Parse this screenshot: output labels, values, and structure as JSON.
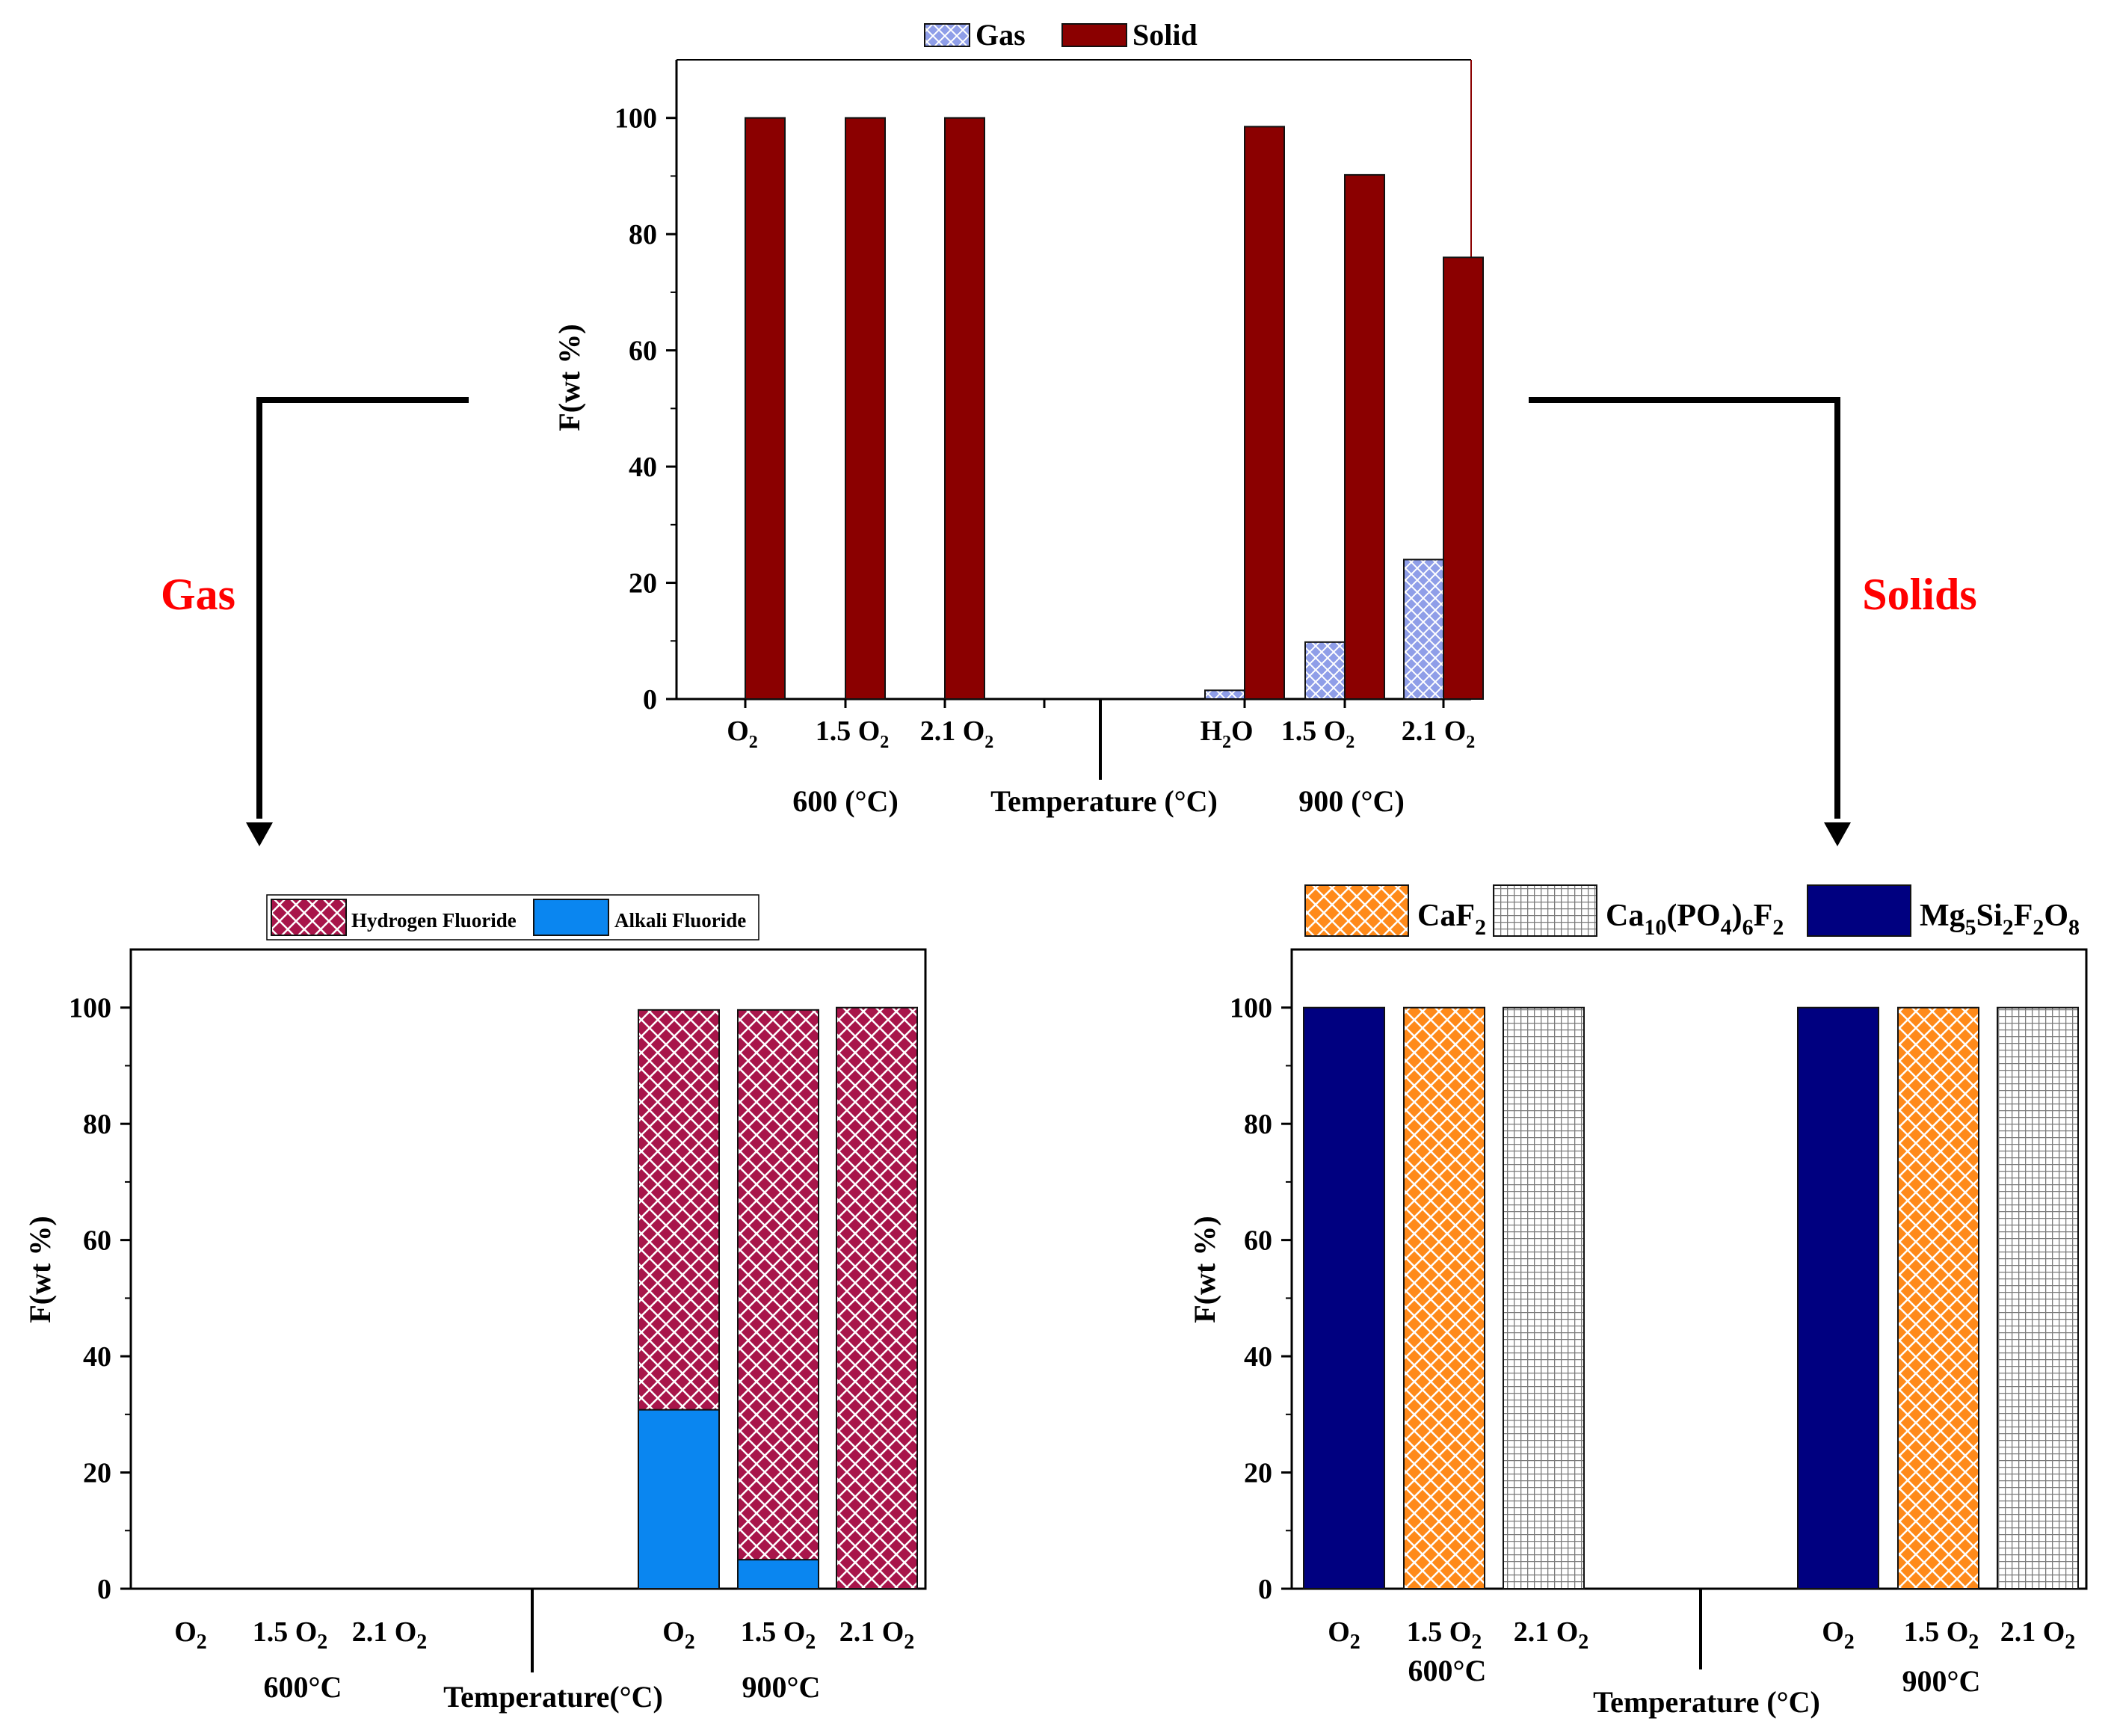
{
  "annotations": {
    "left_label": "Gas",
    "right_label": "Solids"
  },
  "colors": {
    "gas": "#8f9ee8",
    "solid": "#8b0000",
    "hydrogen_fluoride": "#a8154a",
    "alkali_fluoride": "#0a86f0",
    "caf2": "#ff8a1a",
    "apatite": "#9a9a9a",
    "mg_silicate": "#000080",
    "annotation": "#ff0000"
  },
  "chart_data": [
    {
      "id": "top",
      "type": "bar",
      "ylabel": "F(wt %)",
      "xlabel": "Temperature (°C)",
      "ylim": [
        0,
        110
      ],
      "yticks": [
        0,
        20,
        40,
        60,
        80,
        100
      ],
      "groups": [
        "600 (°C)",
        "900 (°C)"
      ],
      "categories": [
        {
          "main": "O",
          "sub": "2"
        },
        {
          "main": "1.5 O",
          "sub": "2"
        },
        {
          "main": "2.1 O",
          "sub": "2"
        },
        {
          "main": "",
          "sub": ""
        },
        {
          "main": "H",
          "sub": "2",
          "tail": "O"
        },
        {
          "main": "1.5 O",
          "sub": "2"
        },
        {
          "main": "2.1 O",
          "sub": "2"
        }
      ],
      "legend": [
        "Gas",
        "Solid"
      ],
      "series": [
        {
          "name": "Gas",
          "values": [
            0,
            0,
            0,
            null,
            1.5,
            9.8,
            24
          ]
        },
        {
          "name": "Solid",
          "values": [
            100,
            100,
            100,
            null,
            98.5,
            90.2,
            76
          ]
        }
      ]
    },
    {
      "id": "gas",
      "type": "bar",
      "stacked": true,
      "ylabel": "F(wt %)",
      "xlabel": "Temperature(°C)",
      "ylim": [
        0,
        110
      ],
      "yticks": [
        0,
        20,
        40,
        60,
        80,
        100
      ],
      "groups": [
        "600°C",
        "900°C"
      ],
      "categories": [
        {
          "main": "O",
          "sub": "2"
        },
        {
          "main": "1.5 O",
          "sub": "2"
        },
        {
          "main": "2.1 O",
          "sub": "2"
        },
        {
          "main": "O",
          "sub": "2"
        },
        {
          "main": "1.5 O",
          "sub": "2"
        },
        {
          "main": "2.1 O",
          "sub": "2"
        }
      ],
      "legend": [
        "Hydrogen Fluoride",
        "Alkali Fluoride"
      ],
      "series": [
        {
          "name": "Alkali Fluoride",
          "values": [
            0,
            0,
            0,
            30.8,
            5.0,
            0
          ]
        },
        {
          "name": "Hydrogen Fluoride",
          "values": [
            0,
            0,
            0,
            68.8,
            94.6,
            100
          ]
        }
      ]
    },
    {
      "id": "solids",
      "type": "bar",
      "ylabel": "F(wt %)",
      "xlabel": "Temperature (°C)",
      "ylim": [
        0,
        110
      ],
      "yticks": [
        0,
        20,
        40,
        60,
        80,
        100
      ],
      "groups": [
        "600°C",
        "900°C"
      ],
      "categories": [
        {
          "main": "O",
          "sub": "2"
        },
        {
          "main": "1.5 O",
          "sub": "2"
        },
        {
          "main": "2.1 O",
          "sub": "2"
        },
        {
          "main": "O",
          "sub": "2"
        },
        {
          "main": "1.5 O",
          "sub": "2"
        },
        {
          "main": "2.1 O",
          "sub": "2"
        }
      ],
      "legend": [
        "CaF2",
        "Ca10(PO4)6F2",
        "Mg5Si2F2O8"
      ],
      "series": [
        {
          "name": "Mg5Si2F2O8",
          "values": [
            100,
            0,
            0,
            100,
            0,
            0
          ]
        },
        {
          "name": "CaF2",
          "values": [
            0,
            100,
            0,
            0,
            100,
            0
          ]
        },
        {
          "name": "Ca10(PO4)6F2",
          "values": [
            0,
            0,
            100,
            0,
            0,
            100
          ]
        }
      ]
    }
  ]
}
